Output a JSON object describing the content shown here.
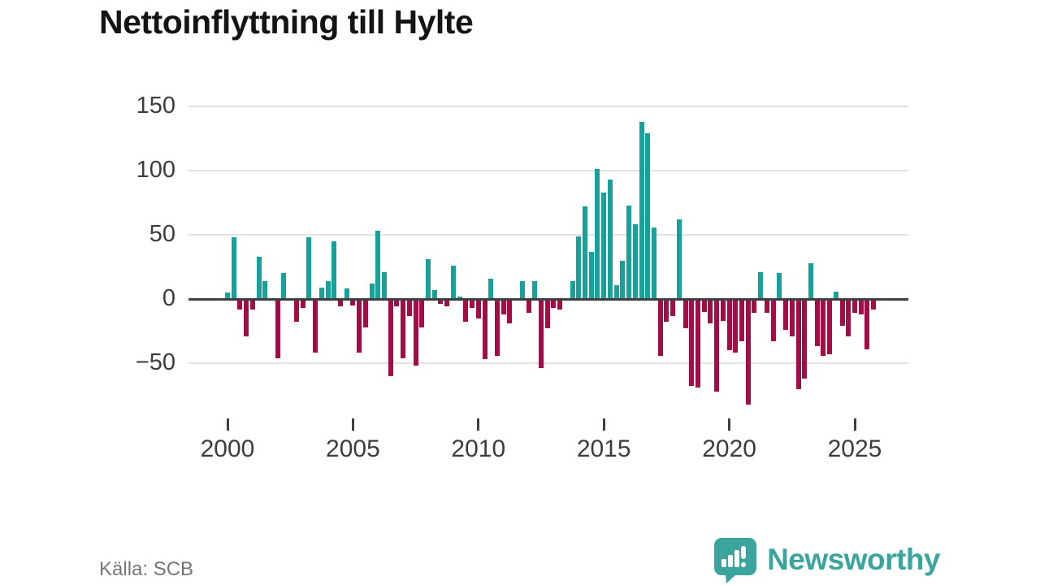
{
  "title": "Nettoinflyttning till Hylte",
  "source": "Källa: SCB",
  "brand": {
    "name": "Newsworthy",
    "color": "#3aa49d",
    "icon": "speech-bubble-bar-chart-icon"
  },
  "chart_data": {
    "type": "bar",
    "title": "Nettoinflyttning till Hylte",
    "frequency": "quarterly",
    "start": "2000Q1",
    "end": "2025Q4",
    "grid": "horizontal",
    "legend": "none",
    "ylim": [
      -90,
      160
    ],
    "positive_color": "#16a29b",
    "negative_color": "#a30d45",
    "axis_color": "#3f3f3f",
    "gridline_color": "#e2e2e2",
    "y_ticks": [
      {
        "label": "150",
        "value": 150
      },
      {
        "label": "100",
        "value": 100
      },
      {
        "label": "50",
        "value": 50
      },
      {
        "label": "0",
        "value": 0
      },
      {
        "label": "−50",
        "value": -50
      }
    ],
    "x_ticks": [
      {
        "label": "2000",
        "quarter_index": 0
      },
      {
        "label": "2005",
        "quarter_index": 20
      },
      {
        "label": "2010",
        "quarter_index": 40
      },
      {
        "label": "2015",
        "quarter_index": 60
      },
      {
        "label": "2020",
        "quarter_index": 80
      },
      {
        "label": "2025",
        "quarter_index": 100
      }
    ],
    "start_year": 2000,
    "values": [
      5,
      48,
      -8,
      -29,
      -8,
      33,
      14,
      0,
      -46,
      20,
      0,
      -18,
      -7,
      48,
      -42,
      9,
      14,
      45,
      -6,
      8,
      -5,
      -42,
      -22,
      12,
      53,
      21,
      -60,
      -6,
      -46,
      -13,
      -52,
      -22,
      31,
      7,
      -4,
      -6,
      26,
      2,
      -18,
      -7,
      -15,
      -47,
      16,
      -44,
      -12,
      -19,
      0,
      14,
      -11,
      14,
      -54,
      -23,
      -7,
      -8,
      0,
      14,
      49,
      72,
      37,
      101,
      83,
      93,
      11,
      30,
      73,
      58,
      138,
      129,
      56,
      -44,
      -18,
      -13,
      62,
      -23,
      -68,
      -69,
      -10,
      -19,
      -72,
      -17,
      -40,
      -42,
      -33,
      -82,
      -11,
      21,
      -11,
      -33,
      20,
      -24,
      -29,
      -70,
      -62,
      28,
      -37,
      -44,
      -43,
      6,
      -21,
      -29,
      -11,
      -12,
      -39,
      -8
    ]
  }
}
